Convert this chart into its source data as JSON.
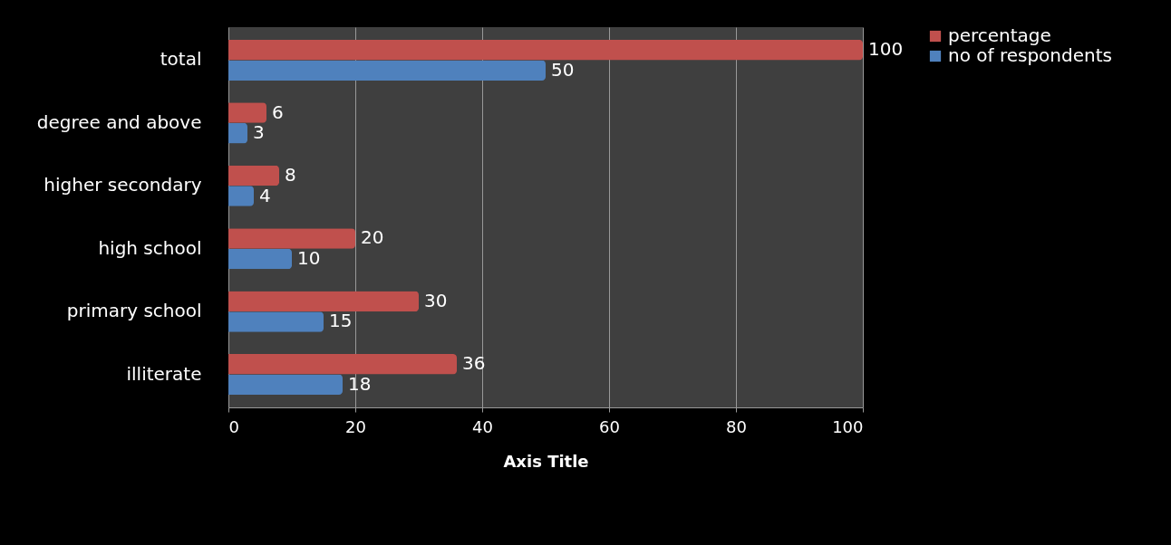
{
  "chart_data": {
    "type": "bar",
    "orientation": "horizontal",
    "xlabel": "Axis Title",
    "categories": [
      "total",
      "degree and above",
      "higher secondary",
      "high school",
      "primary school",
      "illiterate"
    ],
    "series": [
      {
        "name": "percentage",
        "color": "#c0504d",
        "values": [
          100,
          6,
          8,
          20,
          30,
          36
        ]
      },
      {
        "name": "no of respondents",
        "color": "#4f81bd",
        "values": [
          50,
          3,
          4,
          10,
          15,
          18
        ]
      }
    ],
    "xlim": [
      0,
      100
    ],
    "xticks": [
      0,
      20,
      40,
      60,
      80,
      100
    ],
    "grid": "x",
    "legend": "right",
    "data_labels": true
  }
}
